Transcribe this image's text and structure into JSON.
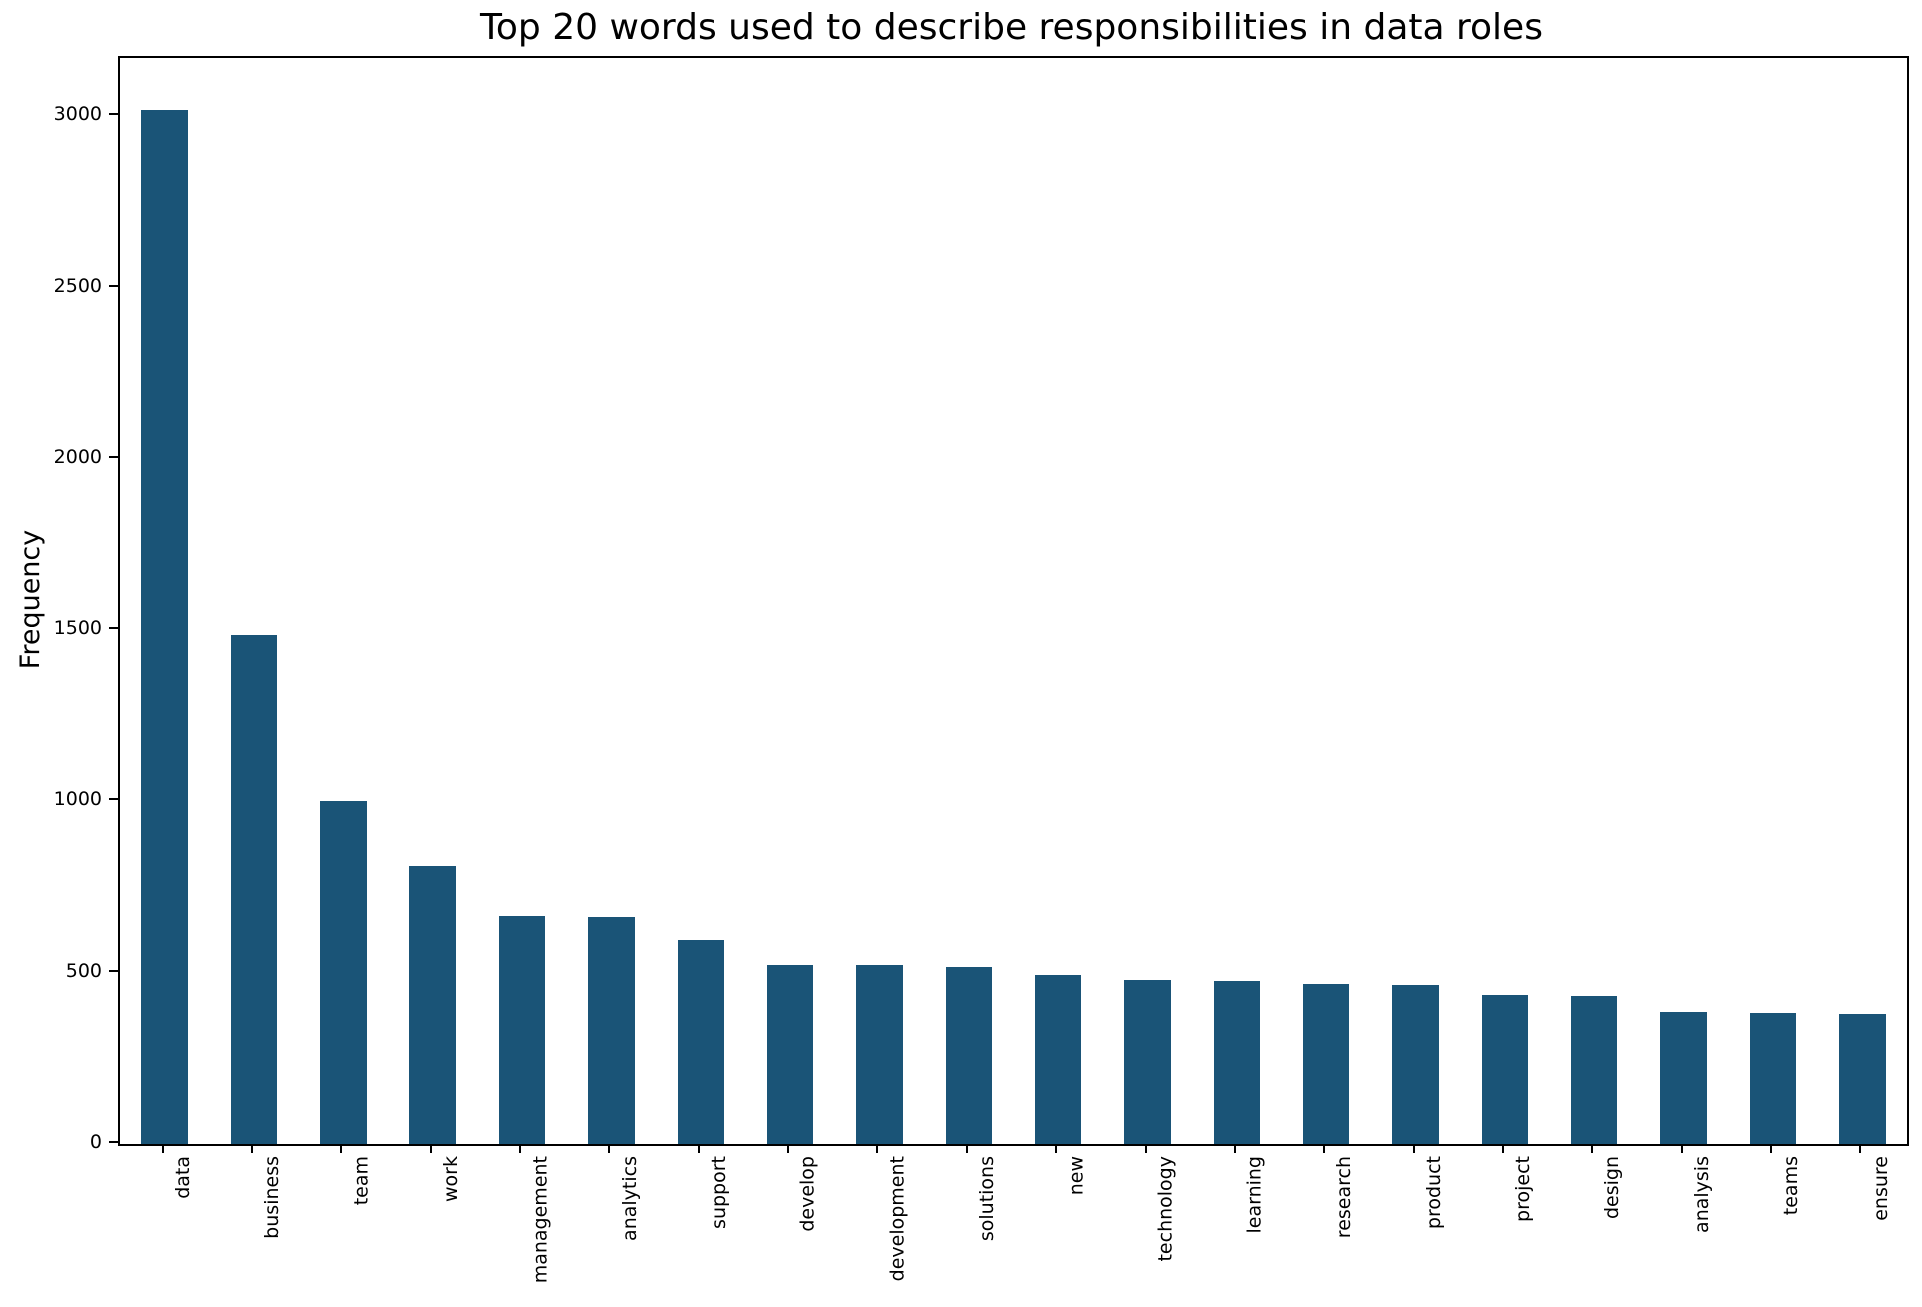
{
  "chart_data": {
    "type": "bar",
    "title": "Top 20 words used to describe responsibilities in data roles",
    "xlabel": "",
    "ylabel": "Frequency",
    "categories": [
      "data",
      "business",
      "team",
      "work",
      "management",
      "analytics",
      "support",
      "develop",
      "development",
      "solutions",
      "new",
      "technology",
      "learning",
      "research",
      "product",
      "project",
      "design",
      "analysis",
      "teams",
      "ensure"
    ],
    "values": [
      3019,
      1485,
      1002,
      812,
      667,
      662,
      595,
      523,
      523,
      518,
      494,
      480,
      477,
      467,
      463,
      436,
      433,
      385,
      381,
      379
    ],
    "ylim": [
      0,
      3170
    ],
    "yticks": [
      0,
      500,
      1000,
      1500,
      2000,
      2500,
      3000
    ],
    "grid": false,
    "legend": null,
    "bar_color": "#1a5477",
    "spine_color": "#000000",
    "background": "#ffffff"
  }
}
